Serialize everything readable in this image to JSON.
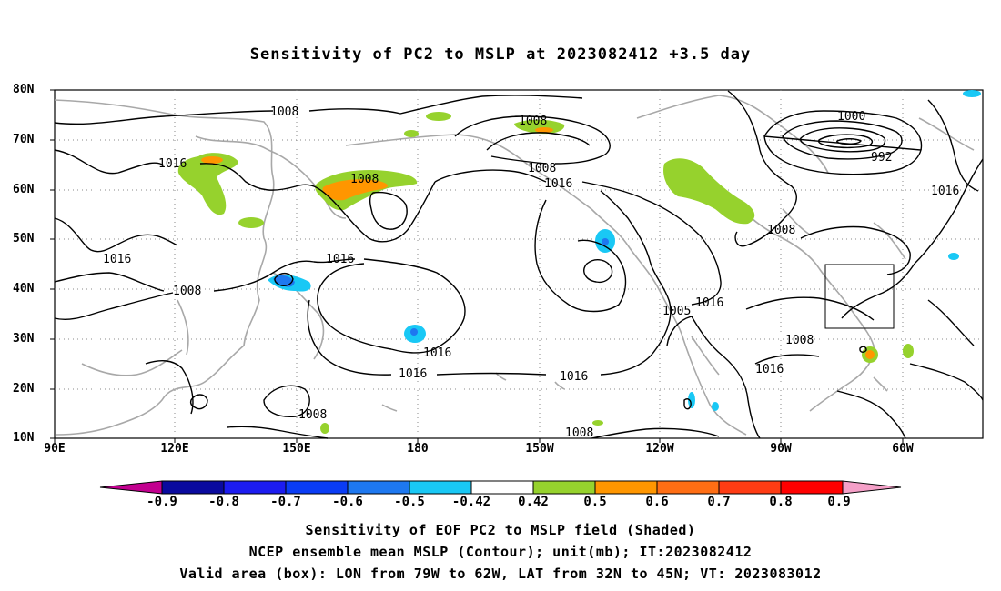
{
  "title": "Sensitivity of PC2 to MSLP at 2023082412 +3.5 day",
  "lat_labels": [
    "80N",
    "70N",
    "60N",
    "50N",
    "40N",
    "30N",
    "20N",
    "10N"
  ],
  "lon_labels": [
    "90E",
    "120E",
    "150E",
    "180",
    "150W",
    "120W",
    "90W",
    "60W"
  ],
  "contour_labels": [
    "1008",
    "1008",
    "1016",
    "1008",
    "1000",
    "992",
    "1008",
    "1016",
    "1016",
    "1016",
    "1016",
    "1008",
    "1016",
    "1016",
    "1005",
    "1016",
    "1008",
    "1008",
    "1016",
    "1016",
    "1008",
    "1008",
    "1016"
  ],
  "colorbar": {
    "labels": [
      "-0.9",
      "-0.8",
      "-0.7",
      "-0.6",
      "-0.5",
      "-0.42",
      "0.42",
      "0.5",
      "0.6",
      "0.7",
      "0.8",
      "0.9"
    ],
    "colors": [
      "#c2008f",
      "#0a0a9e",
      "#1c1cf0",
      "#0a3cf5",
      "#1e78f0",
      "#19c8f5",
      "#ffffff",
      "#96d22d",
      "#ff9600",
      "#ff6e14",
      "#ff3c14",
      "#ff0000",
      "#f5a0c8"
    ]
  },
  "captions": [
    "Sensitivity of EOF PC2 to MSLP field (Shaded)",
    "NCEP ensemble mean MSLP (Contour); unit(mb); IT:2023082412",
    "Valid area (box): LON from 79W to 62W, LAT from 32N to 45N; VT: 2023083012"
  ]
}
